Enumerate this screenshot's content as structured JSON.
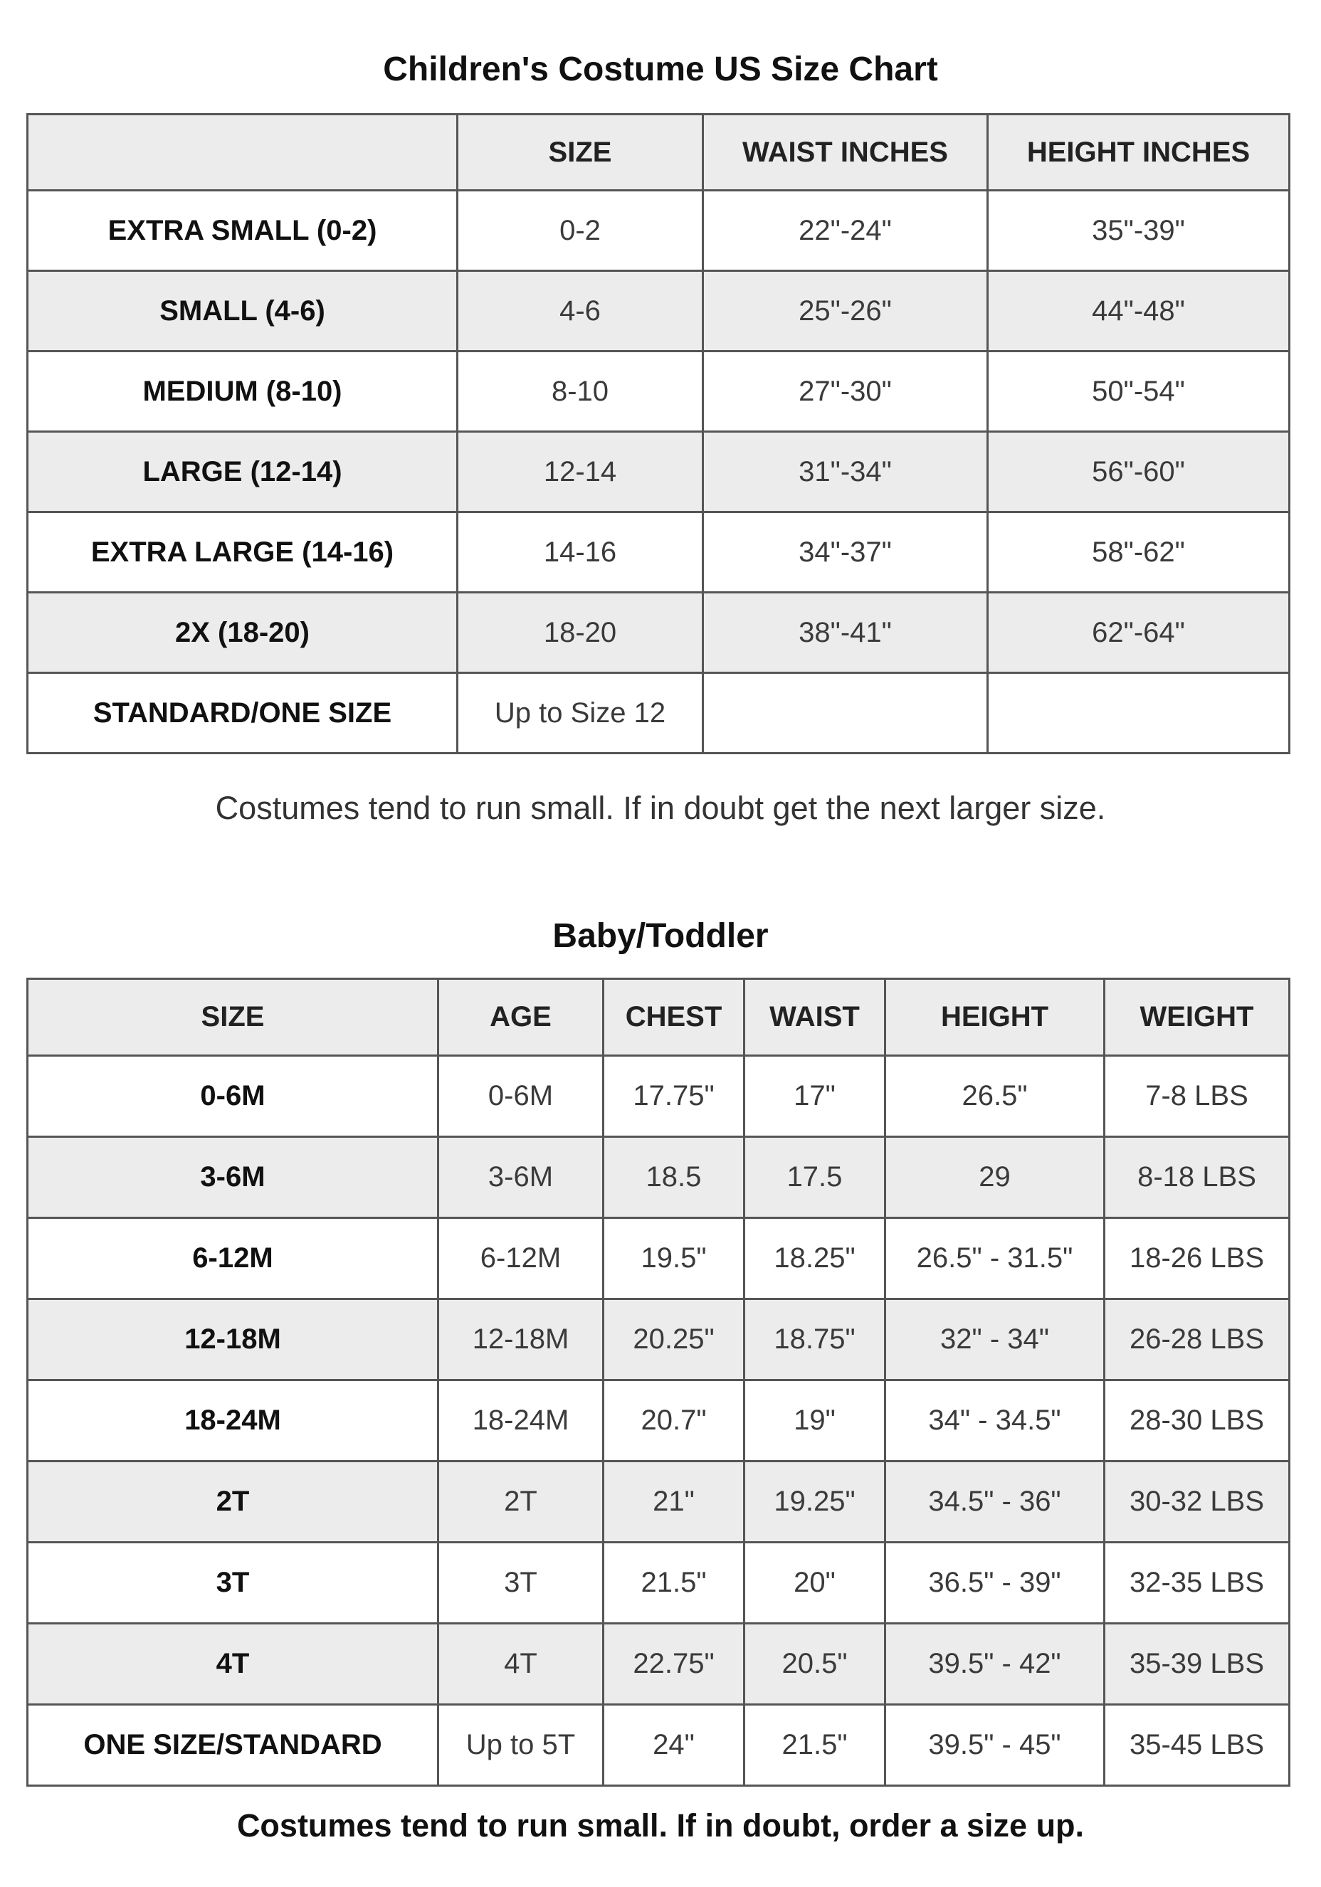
{
  "chart1": {
    "title": "Children's Costume US Size Chart",
    "headers": [
      "",
      "SIZE",
      "WAIST INCHES",
      "HEIGHT INCHES"
    ],
    "rows": [
      [
        "EXTRA SMALL (0-2)",
        "0-2",
        "22\"-24\"",
        "35\"-39\""
      ],
      [
        "SMALL (4-6)",
        "4-6",
        "25\"-26\"",
        "44\"-48\""
      ],
      [
        "MEDIUM (8-10)",
        "8-10",
        "27\"-30\"",
        "50\"-54\""
      ],
      [
        "LARGE (12-14)",
        "12-14",
        "31\"-34\"",
        "56\"-60\""
      ],
      [
        "EXTRA LARGE (14-16)",
        "14-16",
        "34\"-37\"",
        "58\"-62\""
      ],
      [
        "2X (18-20)",
        "18-20",
        "38\"-41\"",
        "62\"-64\""
      ],
      [
        "STANDARD/ONE SIZE",
        "Up to Size 12",
        "",
        ""
      ]
    ],
    "note": "Costumes tend to run small. If in doubt get the next larger size."
  },
  "chart2": {
    "title": "Baby/Toddler",
    "headers": [
      "SIZE",
      "AGE",
      "CHEST",
      "WAIST",
      "HEIGHT",
      "WEIGHT"
    ],
    "rows": [
      [
        "0-6M",
        "0-6M",
        "17.75\"",
        "17\"",
        "26.5\"",
        "7-8 LBS"
      ],
      [
        "3-6M",
        "3-6M",
        "18.5",
        "17.5",
        "29",
        "8-18 LBS"
      ],
      [
        "6-12M",
        "6-12M",
        "19.5\"",
        "18.25\"",
        "26.5\" - 31.5\"",
        "18-26 LBS"
      ],
      [
        "12-18M",
        "12-18M",
        "20.25\"",
        "18.75\"",
        "32\" - 34\"",
        "26-28 LBS"
      ],
      [
        "18-24M",
        "18-24M",
        "20.7\"",
        "19\"",
        "34\" - 34.5\"",
        "28-30 LBS"
      ],
      [
        "2T",
        "2T",
        "21\"",
        "19.25\"",
        "34.5\" - 36\"",
        "30-32 LBS"
      ],
      [
        "3T",
        "3T",
        "21.5\"",
        "20\"",
        "36.5\" - 39\"",
        "32-35 LBS"
      ],
      [
        "4T",
        "4T",
        "22.75\"",
        "20.5\"",
        "39.5\" - 42\"",
        "35-39 LBS"
      ],
      [
        "ONE SIZE/STANDARD",
        "Up to 5T",
        "24\"",
        "21.5\"",
        "39.5\" - 45\"",
        "35-45 LBS"
      ]
    ],
    "note": "Costumes tend to run small. If in doubt, order a size up."
  },
  "colors": {
    "header_bg": "#ececec",
    "alt_row_bg": "#ececec",
    "border": "#555555"
  }
}
